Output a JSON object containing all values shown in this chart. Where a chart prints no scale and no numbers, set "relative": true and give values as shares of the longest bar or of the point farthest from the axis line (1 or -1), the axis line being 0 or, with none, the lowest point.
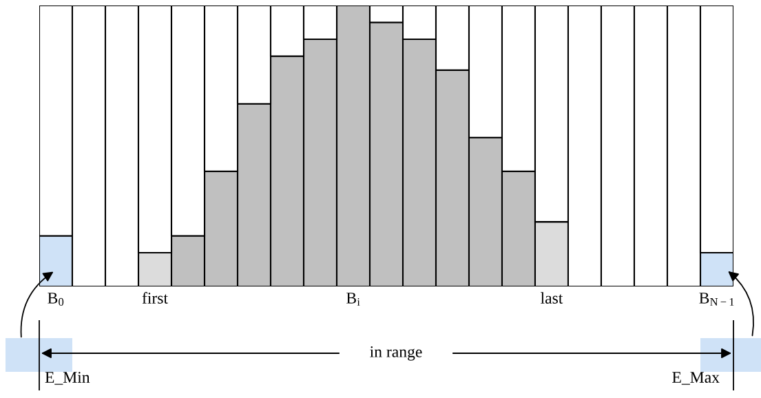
{
  "chart_data": {
    "type": "bar",
    "relative": true,
    "stacked": true,
    "categories": [
      "B$_{0}$",
      null,
      null,
      "first",
      null,
      null,
      null,
      null,
      null,
      "B$_{i}$",
      null,
      null,
      null,
      null,
      null,
      "last",
      null,
      null,
      null,
      null,
      "B$_{N−1}$"
    ],
    "series": [
      {
        "colors": [
          "#cfe2f7",
          "#c0c0c0",
          "#c0c0c0",
          "#dcdcdc",
          "#c0c0c0",
          "#c0c0c0",
          "#c0c0c0",
          "#c0c0c0",
          "#c0c0c0",
          "#c0c0c0",
          "#c0c0c0",
          "#c0c0c0",
          "#c0c0c0",
          "#c0c0c0",
          "#c0c0c0",
          "#dcdcdc",
          "#c0c0c0",
          "#c0c0c0",
          "#c0c0c0",
          "#c0c0c0",
          "#cfe2f7"
        ],
        "values": [
          0.18,
          0,
          0,
          0.12,
          0.18,
          0.41,
          0.65,
          0.82,
          0.88,
          1.0,
          0.94,
          0.88,
          0.77,
          0.53,
          0.41,
          0.23,
          0,
          0,
          0,
          0,
          0.12
        ]
      },
      {
        "color": "#ffffff",
        "values": [
          0.82,
          1.0,
          1.0,
          0.88,
          0.82,
          0.59,
          0.35,
          0.18,
          0.12,
          null,
          0.06,
          0.12,
          0.23,
          0.47,
          0.59,
          0.77,
          1.0,
          1.0,
          1.0,
          1.0,
          0.88
        ]
      }
    ],
    "annotations": [
      "in range",
      "E_Min",
      "E_Max"
    ]
  }
}
